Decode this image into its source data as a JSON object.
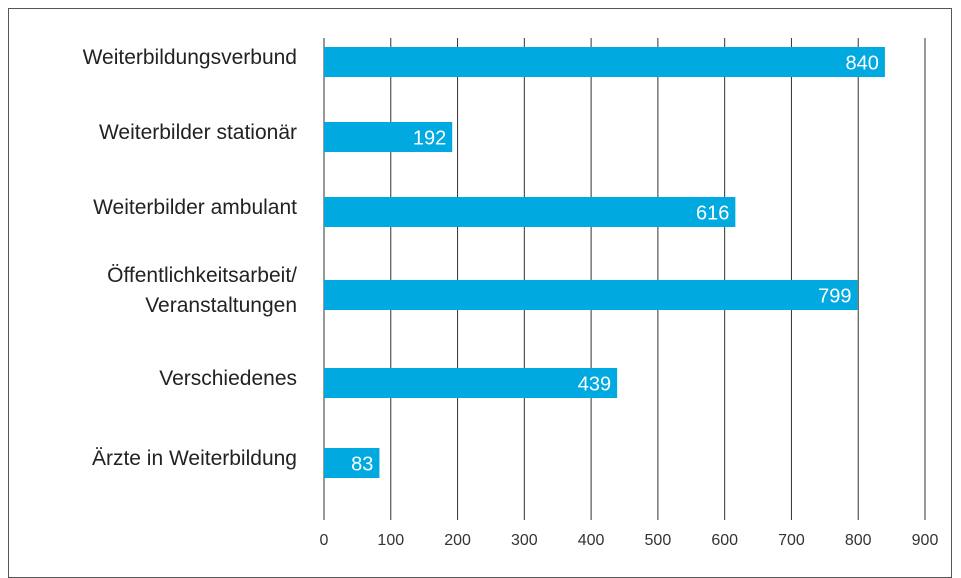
{
  "chart_data": {
    "type": "bar",
    "orientation": "horizontal",
    "categories": [
      "Weiterbildungsverbund",
      "Weiterbilder stationär",
      "Weiterbilder ambulant",
      "Öffentlichkeitsarbeit/\nVeranstaltungen",
      "Verschiedenes",
      "Ärzte in Weiterbildung"
    ],
    "values": [
      840,
      192,
      616,
      799,
      439,
      83
    ],
    "color": "#00a9e0",
    "xlim": [
      0,
      900
    ],
    "xticks": [
      0,
      100,
      200,
      300,
      400,
      500,
      600,
      700,
      800,
      900
    ],
    "grid": true
  }
}
